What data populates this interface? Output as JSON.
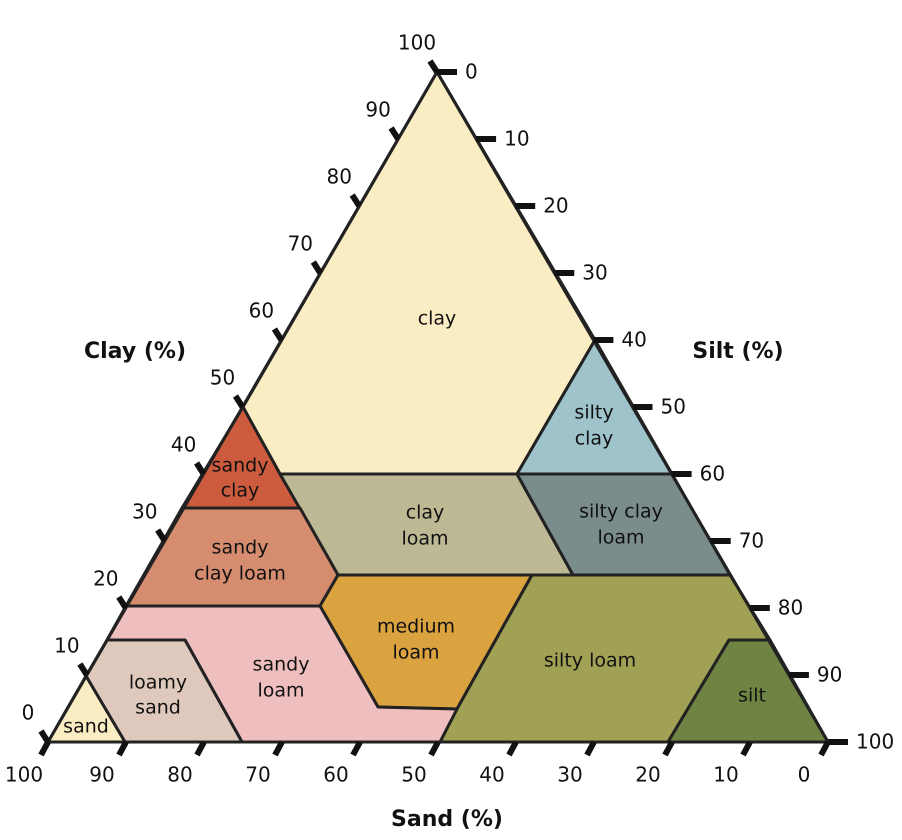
{
  "axes": {
    "clay": {
      "title": "Clay (%)",
      "ticks": [
        0,
        10,
        20,
        30,
        40,
        50,
        60,
        70,
        80,
        90,
        100
      ]
    },
    "silt": {
      "title": "Silt (%)",
      "ticks": [
        0,
        10,
        20,
        30,
        40,
        50,
        60,
        70,
        80,
        90,
        100
      ]
    },
    "sand": {
      "title": "Sand (%)",
      "ticks": [
        100,
        90,
        80,
        70,
        60,
        50,
        40,
        30,
        20,
        10,
        0
      ]
    }
  },
  "regions": [
    {
      "lines": [
        "clay"
      ]
    },
    {
      "lines": [
        "sandy",
        "clay"
      ]
    },
    {
      "lines": [
        "silty",
        "clay"
      ]
    },
    {
      "lines": [
        "clay",
        "loam"
      ]
    },
    {
      "lines": [
        "sandy",
        "clay loam"
      ]
    },
    {
      "lines": [
        "silty clay",
        "loam"
      ]
    },
    {
      "lines": [
        "medium",
        "loam"
      ]
    },
    {
      "lines": [
        "silty loam"
      ]
    },
    {
      "lines": [
        "silt"
      ]
    },
    {
      "lines": [
        "sandy",
        "loam"
      ]
    },
    {
      "lines": [
        "loamy",
        "sand"
      ]
    },
    {
      "lines": [
        "sand"
      ]
    }
  ]
}
